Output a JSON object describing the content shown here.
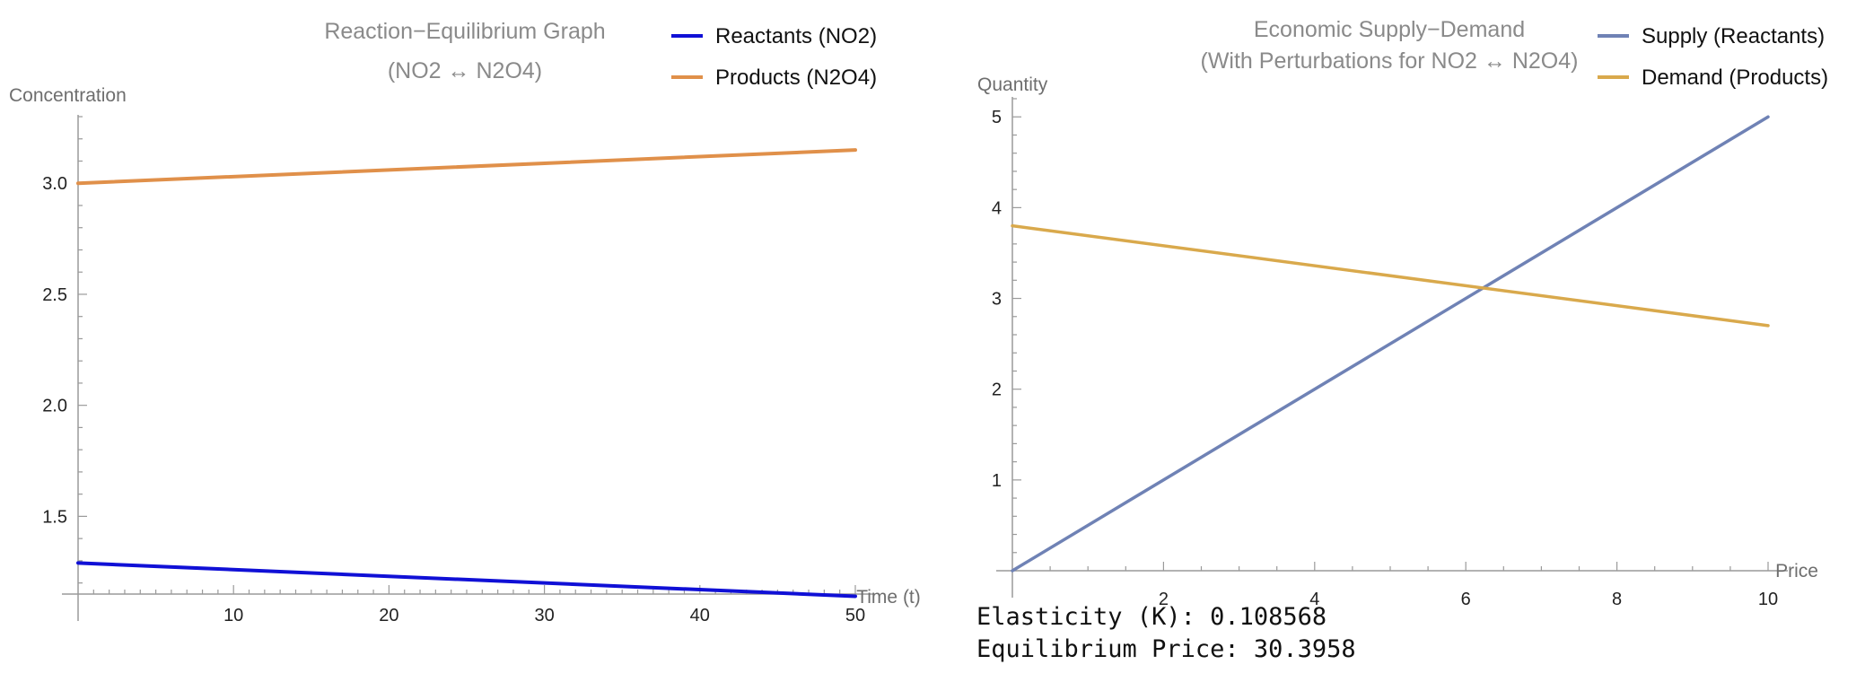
{
  "chart_data": [
    {
      "type": "line",
      "title": "Reaction−Equilibrium Graph",
      "subtitle": "(NO2 ↔ N2O4)",
      "xlabel": "Time (t)",
      "ylabel": "Concentration",
      "xlim": [
        0,
        50
      ],
      "ylim": [
        1.15,
        3.3
      ],
      "xticks": [
        10,
        20,
        30,
        40,
        50
      ],
      "yticks": [
        1.5,
        2.0,
        2.5,
        3.0
      ],
      "ytick_labels": [
        "1.5",
        "2.0",
        "2.5",
        "3.0"
      ],
      "legend_position": "top-right",
      "series": [
        {
          "name": "Reactants (NO2)",
          "color": "#1010d6",
          "x": [
            0,
            50
          ],
          "y": [
            1.29,
            1.14
          ]
        },
        {
          "name": "Products (N2O4)",
          "color": "#e0904a",
          "x": [
            0,
            50
          ],
          "y": [
            3.0,
            3.15
          ]
        }
      ]
    },
    {
      "type": "line",
      "title": "Economic Supply−Demand",
      "subtitle": "(With Perturbations for NO2 ↔ N2O4)",
      "xlabel": "Price",
      "ylabel": "Quantity",
      "xlim": [
        0,
        10
      ],
      "ylim": [
        0,
        5.2
      ],
      "xticks": [
        2,
        4,
        6,
        8,
        10
      ],
      "yticks": [
        1,
        2,
        3,
        4,
        5
      ],
      "legend_position": "top-right",
      "series": [
        {
          "name": "Supply (Reactants)",
          "color": "#6f82b5",
          "x": [
            0,
            10
          ],
          "y": [
            0,
            5
          ]
        },
        {
          "name": "Demand (Products)",
          "color": "#d9a94c",
          "x": [
            0,
            10
          ],
          "y": [
            3.8,
            2.7
          ]
        }
      ]
    }
  ],
  "output_text": {
    "elasticity": "Elasticity (K): 0.108568",
    "equilibrium_price": "Equilibrium Price: 30.3958"
  }
}
